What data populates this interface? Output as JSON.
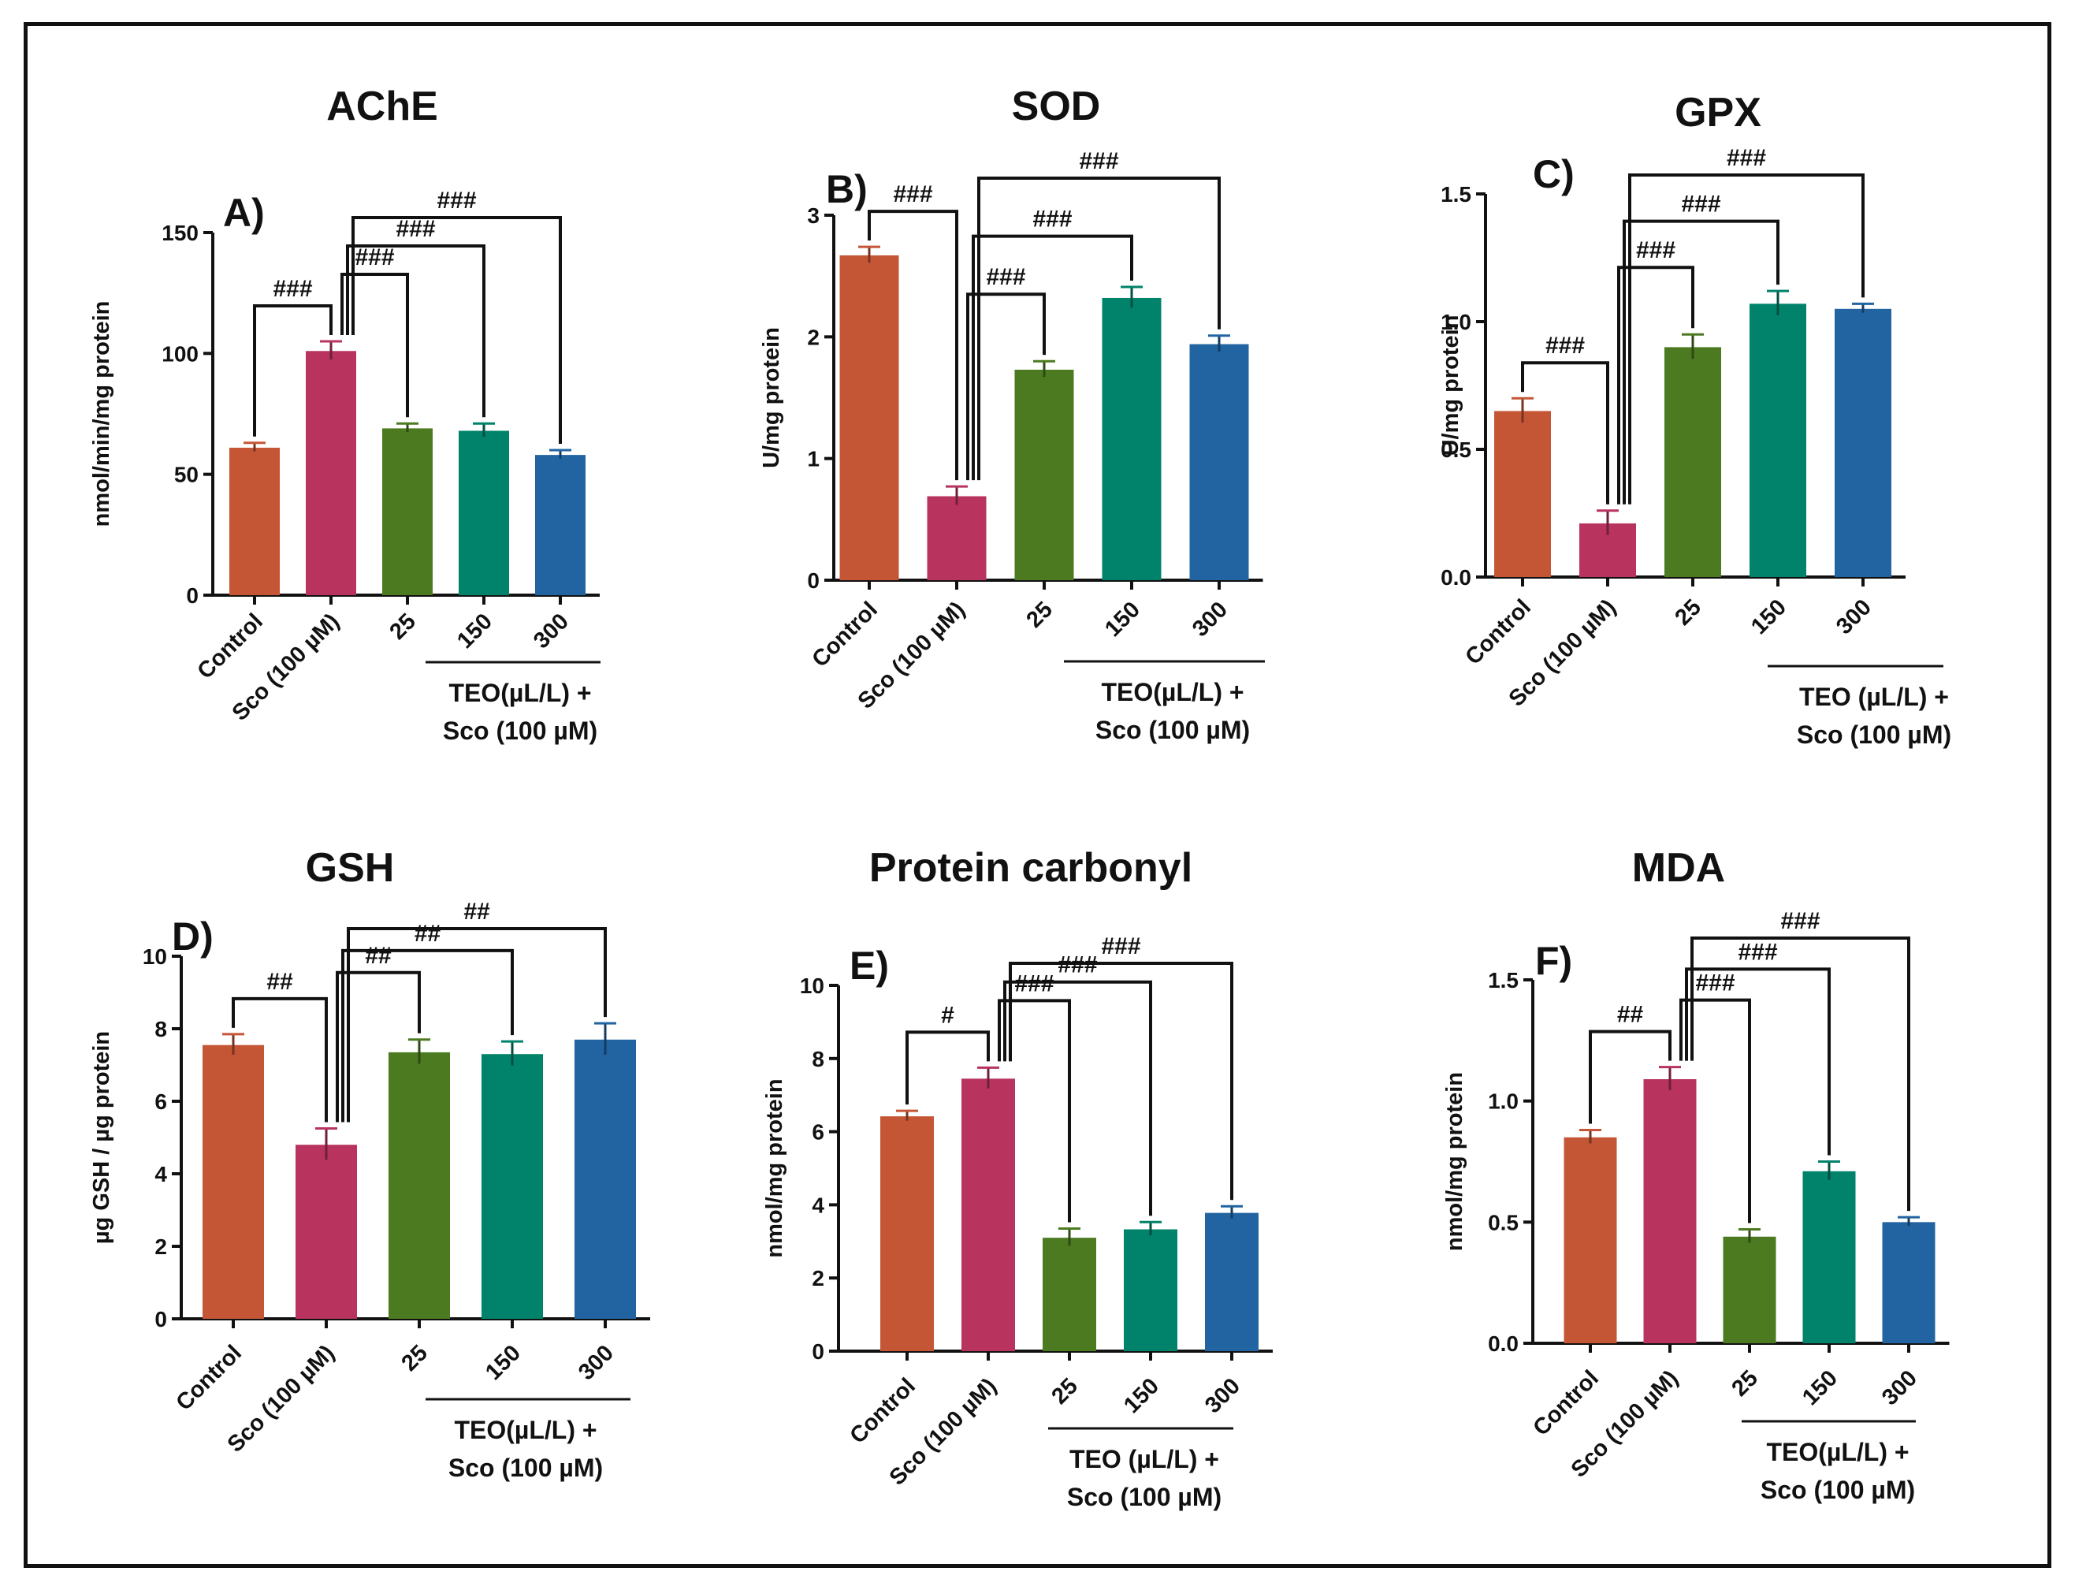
{
  "colors": {
    "control": "#c45636",
    "sco": "#b8345f",
    "teo25": "#4c7a20",
    "teo150": "#00836a",
    "teo300": "#2164a1",
    "axis": "#111111"
  },
  "chart_data": [
    {
      "type": "bar",
      "panel": "A)",
      "title": "AChE",
      "ylabel": "nmol/min/mg protein",
      "categories": [
        "Control",
        "Sco (100 µM)",
        "25",
        "150",
        "300"
      ],
      "values": [
        61,
        101,
        69,
        68,
        58
      ],
      "errors": [
        2,
        4,
        2,
        3,
        2
      ],
      "ylim": [
        0,
        150
      ],
      "yticks": [
        0,
        50,
        100,
        150
      ],
      "ytick_labels": [
        "0",
        "50",
        "100",
        "150"
      ],
      "group_label": [
        "TEO(µL/L) +",
        "Sco (100 µM)"
      ],
      "significance": [
        {
          "from": 0,
          "to": 1,
          "label": "###"
        },
        {
          "from": 1,
          "to": 2,
          "label": "###"
        },
        {
          "from": 1,
          "to": 3,
          "label": "###"
        },
        {
          "from": 1,
          "to": 4,
          "label": "###"
        }
      ]
    },
    {
      "type": "bar",
      "panel": "B)",
      "title": "SOD",
      "ylabel": "U/mg protein",
      "categories": [
        "Control",
        "Sco (100 µM)",
        "25",
        "150",
        "300"
      ],
      "values": [
        2.67,
        0.69,
        1.73,
        2.32,
        1.94
      ],
      "errors": [
        0.07,
        0.08,
        0.07,
        0.09,
        0.07
      ],
      "ylim": [
        0,
        3
      ],
      "yticks": [
        0,
        1,
        2,
        3
      ],
      "ytick_labels": [
        "0",
        "1",
        "2",
        "3"
      ],
      "group_label": [
        "TEO(µL/L) +",
        "Sco (100 µM)"
      ],
      "significance": [
        {
          "from": 0,
          "to": 1,
          "label": "###"
        },
        {
          "from": 1,
          "to": 2,
          "label": "###"
        },
        {
          "from": 1,
          "to": 3,
          "label": "###"
        },
        {
          "from": 1,
          "to": 4,
          "label": "###"
        }
      ]
    },
    {
      "type": "bar",
      "panel": "C)",
      "title": "GPX",
      "ylabel": "U/mg protein",
      "categories": [
        "Control",
        "Sco (100 µM)",
        "25",
        "150",
        "300"
      ],
      "values": [
        0.65,
        0.21,
        0.9,
        1.07,
        1.05
      ],
      "errors": [
        0.05,
        0.05,
        0.05,
        0.05,
        0.02
      ],
      "ylim": [
        0,
        1.5
      ],
      "yticks": [
        0,
        0.5,
        1.0,
        1.5
      ],
      "ytick_labels": [
        "0.0",
        "0.5",
        "1.0",
        "1.5"
      ],
      "group_label": [
        "TEO (µL/L) +",
        "Sco (100 µM)"
      ],
      "significance": [
        {
          "from": 0,
          "to": 1,
          "label": "###"
        },
        {
          "from": 1,
          "to": 2,
          "label": "###"
        },
        {
          "from": 1,
          "to": 3,
          "label": "###"
        },
        {
          "from": 1,
          "to": 4,
          "label": "###"
        }
      ]
    },
    {
      "type": "bar",
      "panel": "D)",
      "title": "GSH",
      "ylabel": "µg GSH / µg protein",
      "categories": [
        "Control",
        "Sco (100 µM)",
        "25",
        "150",
        "300"
      ],
      "values": [
        7.55,
        4.8,
        7.35,
        7.3,
        7.7
      ],
      "errors": [
        0.3,
        0.45,
        0.35,
        0.35,
        0.45
      ],
      "ylim": [
        0,
        10
      ],
      "yticks": [
        0,
        2,
        4,
        6,
        8,
        10
      ],
      "ytick_labels": [
        "0",
        "2",
        "4",
        "6",
        "8",
        "10"
      ],
      "group_label": [
        "TEO(µL/L) +",
        "Sco (100 µM)"
      ],
      "significance": [
        {
          "from": 0,
          "to": 1,
          "label": "##"
        },
        {
          "from": 1,
          "to": 2,
          "label": "##"
        },
        {
          "from": 1,
          "to": 3,
          "label": "##"
        },
        {
          "from": 1,
          "to": 4,
          "label": "##"
        }
      ]
    },
    {
      "type": "bar",
      "panel": "E)",
      "title": "Protein carbonyl",
      "ylabel": "nmol/mg protein",
      "categories": [
        "Control",
        "Sco (100 µM)",
        "25",
        "150",
        "300"
      ],
      "values": [
        6.42,
        7.45,
        3.1,
        3.33,
        3.78
      ],
      "errors": [
        0.15,
        0.3,
        0.25,
        0.2,
        0.18
      ],
      "ylim": [
        0,
        10
      ],
      "yticks": [
        0,
        2,
        4,
        6,
        8,
        10
      ],
      "ytick_labels": [
        "0",
        "2",
        "4",
        "6",
        "8",
        "10"
      ],
      "group_label": [
        "TEO (µL/L) +",
        "Sco (100 µM)"
      ],
      "significance": [
        {
          "from": 0,
          "to": 1,
          "label": "#"
        },
        {
          "from": 1,
          "to": 2,
          "label": "###"
        },
        {
          "from": 1,
          "to": 3,
          "label": "###"
        },
        {
          "from": 1,
          "to": 4,
          "label": "###"
        }
      ]
    },
    {
      "type": "bar",
      "panel": "F)",
      "title": "MDA",
      "ylabel": "nmol/mg protein",
      "categories": [
        "Control",
        "Sco (100 µM)",
        "25",
        "150",
        "300"
      ],
      "values": [
        0.85,
        1.09,
        0.44,
        0.71,
        0.5
      ],
      "errors": [
        0.03,
        0.05,
        0.03,
        0.04,
        0.02
      ],
      "ylim": [
        0,
        1.5
      ],
      "yticks": [
        0,
        0.5,
        1.0,
        1.5
      ],
      "ytick_labels": [
        "0.0",
        "0.5",
        "1.0",
        "1.5"
      ],
      "group_label": [
        "TEO(µL/L) +",
        "Sco (100 µM)"
      ],
      "significance": [
        {
          "from": 0,
          "to": 1,
          "label": "##"
        },
        {
          "from": 1,
          "to": 2,
          "label": "###"
        },
        {
          "from": 1,
          "to": 3,
          "label": "###"
        },
        {
          "from": 1,
          "to": 4,
          "label": "###"
        }
      ]
    }
  ]
}
